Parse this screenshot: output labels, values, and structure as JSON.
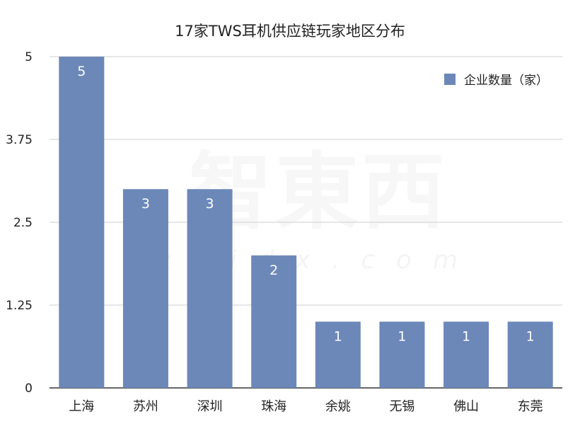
{
  "chart_data": {
    "type": "bar",
    "title": "17家TWS耳机供应链玩家地区分布",
    "categories": [
      "上海",
      "苏州",
      "深圳",
      "珠海",
      "余姚",
      "无锡",
      "佛山",
      "东莞"
    ],
    "series": [
      {
        "name": "企业数量（家）",
        "values": [
          5,
          3,
          3,
          2,
          1,
          1,
          1,
          1
        ],
        "color": "#6c88b8"
      }
    ],
    "ylim": [
      0,
      5
    ],
    "yticks": [
      "0",
      "1.25",
      "2.5",
      "3.75",
      "5"
    ],
    "grid": true,
    "legend": "top-right"
  },
  "watermark": {
    "main": "智東西",
    "sub": "zhidx.com"
  }
}
